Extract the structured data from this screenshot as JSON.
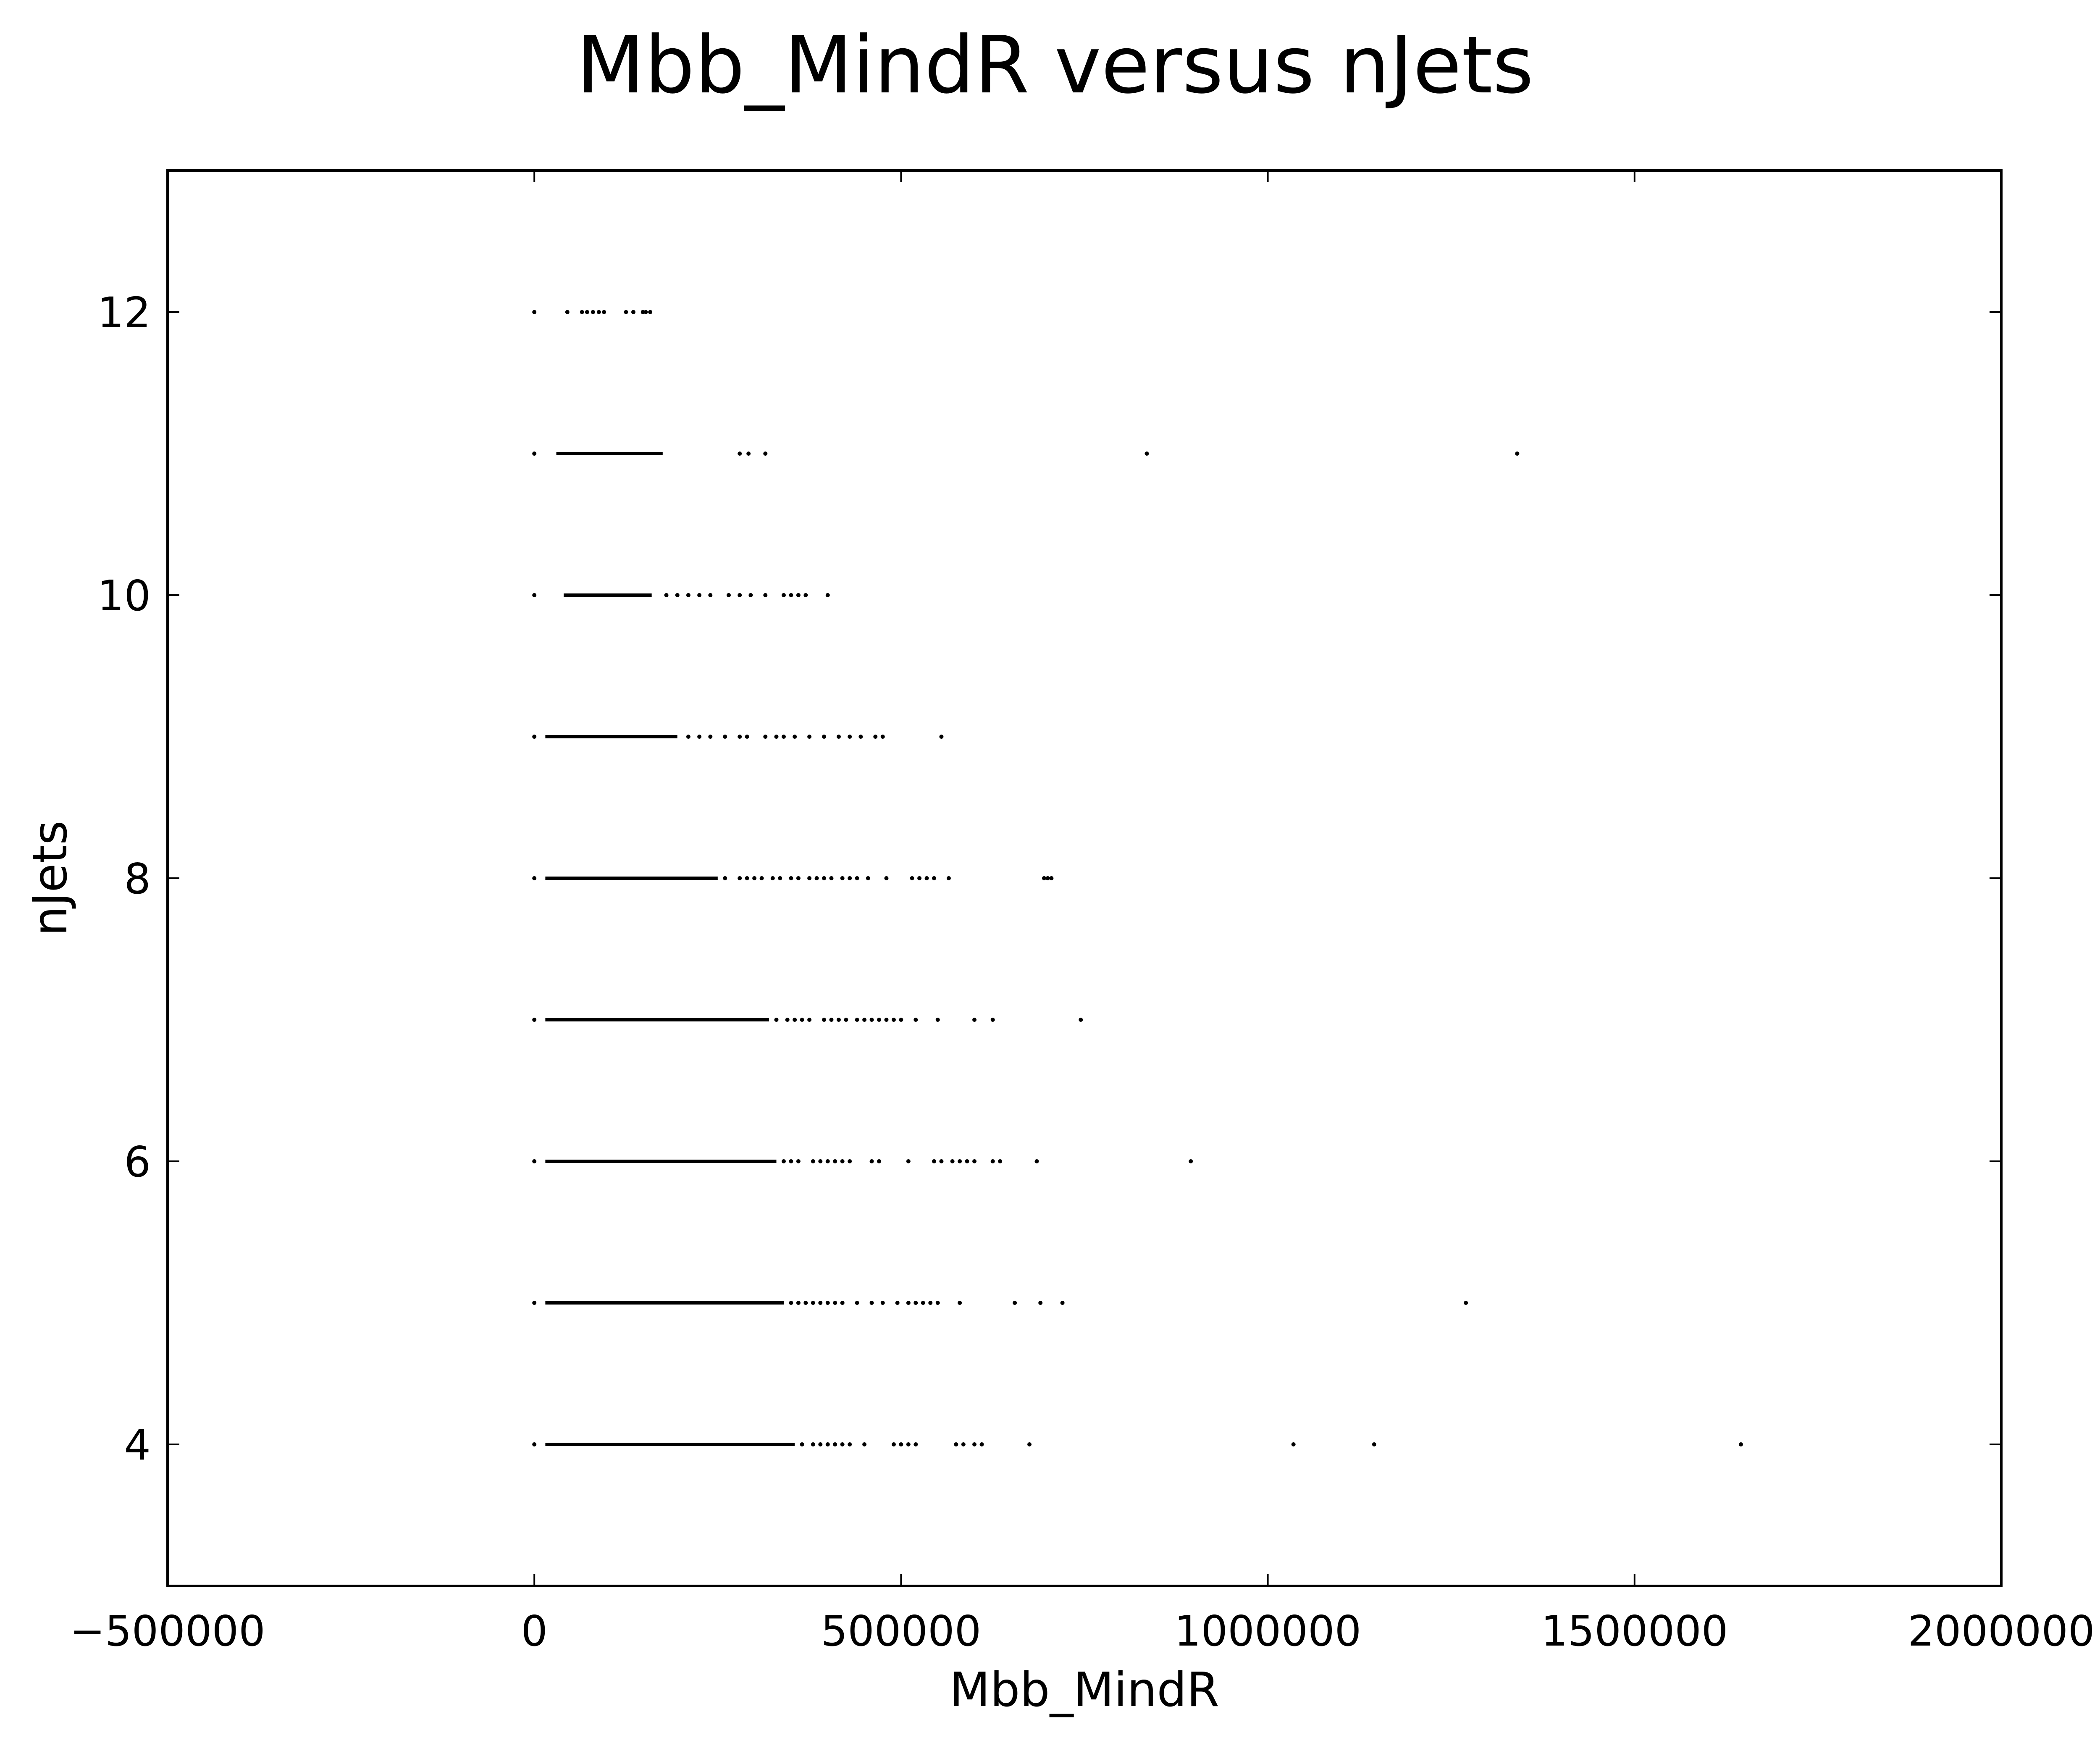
{
  "chart_data": {
    "type": "scatter",
    "title": "Mbb_MindR versus nJets",
    "xlabel": "Mbb_MindR",
    "ylabel": "nJets",
    "xlim": [
      -500000,
      2000000
    ],
    "ylim": [
      3,
      13
    ],
    "xticks": [
      -500000,
      0,
      500000,
      1000000,
      1500000,
      2000000
    ],
    "xtick_labels": [
      "−500000",
      "0",
      "500000",
      "1000000",
      "1500000",
      "2000000"
    ],
    "yticks": [
      4,
      6,
      8,
      10,
      12
    ],
    "ytick_labels": [
      "4",
      "6",
      "8",
      "10",
      "12"
    ],
    "grid": false,
    "marker_color": "#000000",
    "rows": [
      {
        "y": 12,
        "bands": [],
        "points": [
          0,
          45000,
          65000,
          72000,
          80000,
          88000,
          95000,
          125000,
          135000,
          148000,
          152000,
          158000
        ]
      },
      {
        "y": 11,
        "bands": [
          [
            30000,
            175000
          ]
        ],
        "points": [
          0,
          280000,
          292000,
          315000,
          835000,
          1340000
        ]
      },
      {
        "y": 10,
        "bands": [
          [
            40000,
            160000
          ]
        ],
        "points": [
          0,
          180000,
          195000,
          210000,
          225000,
          240000,
          265000,
          280000,
          295000,
          315000,
          340000,
          350000,
          360000,
          370000,
          400000
        ]
      },
      {
        "y": 9,
        "bands": [
          [
            15000,
            195000
          ]
        ],
        "points": [
          0,
          210000,
          225000,
          240000,
          260000,
          280000,
          290000,
          315000,
          330000,
          340000,
          355000,
          375000,
          395000,
          415000,
          430000,
          445000,
          465000,
          475000,
          555000
        ]
      },
      {
        "y": 8,
        "bands": [
          [
            15000,
            250000
          ]
        ],
        "points": [
          0,
          260000,
          280000,
          290000,
          300000,
          310000,
          325000,
          335000,
          350000,
          360000,
          375000,
          385000,
          395000,
          405000,
          420000,
          430000,
          440000,
          455000,
          480000,
          515000,
          525000,
          535000,
          545000,
          565000,
          695000,
          700000,
          705000
        ]
      },
      {
        "y": 7,
        "bands": [
          [
            15000,
            320000
          ]
        ],
        "points": [
          0,
          330000,
          345000,
          355000,
          365000,
          375000,
          395000,
          405000,
          415000,
          425000,
          440000,
          450000,
          460000,
          470000,
          480000,
          490000,
          500000,
          520000,
          550000,
          600000,
          625000,
          745000
        ]
      },
      {
        "y": 6,
        "bands": [
          [
            15000,
            330000
          ]
        ],
        "points": [
          0,
          340000,
          350000,
          360000,
          380000,
          390000,
          400000,
          410000,
          420000,
          430000,
          460000,
          470000,
          510000,
          545000,
          555000,
          570000,
          580000,
          590000,
          600000,
          625000,
          635000,
          685000,
          895000
        ]
      },
      {
        "y": 5,
        "bands": [
          [
            15000,
            340000
          ]
        ],
        "points": [
          0,
          350000,
          360000,
          370000,
          380000,
          390000,
          400000,
          410000,
          420000,
          440000,
          460000,
          475000,
          495000,
          510000,
          520000,
          530000,
          540000,
          550000,
          580000,
          655000,
          690000,
          720000,
          1270000
        ]
      },
      {
        "y": 4,
        "bands": [
          [
            15000,
            355000
          ]
        ],
        "points": [
          0,
          365000,
          380000,
          390000,
          400000,
          410000,
          420000,
          430000,
          450000,
          490000,
          500000,
          510000,
          520000,
          575000,
          585000,
          600000,
          610000,
          675000,
          1035000,
          1145000,
          1645000
        ]
      }
    ]
  }
}
